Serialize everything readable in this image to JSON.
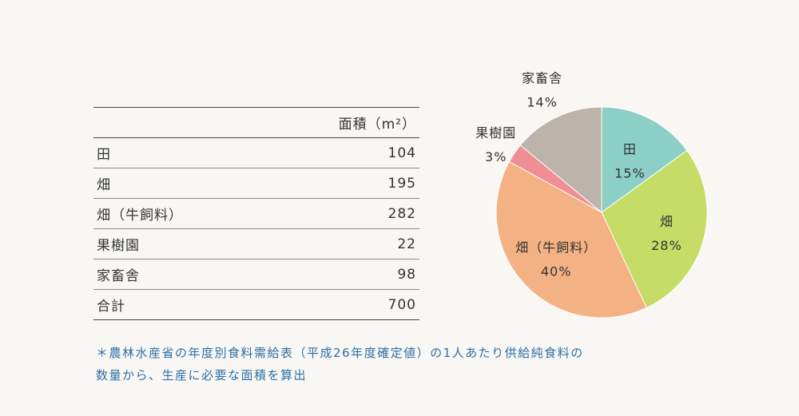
{
  "table": {
    "header_label": "",
    "header_value": "面積（m²）",
    "rows": [
      {
        "label": "田",
        "value": "104"
      },
      {
        "label": "畑",
        "value": "195"
      },
      {
        "label": "畑（牛飼料）",
        "value": "282"
      },
      {
        "label": "果樹園",
        "value": "22"
      },
      {
        "label": "家畜舎",
        "value": "98"
      }
    ],
    "total": {
      "label": "合計",
      "value": "700"
    }
  },
  "chart_data": {
    "type": "pie",
    "unit": "%",
    "slices": [
      {
        "label": "田",
        "value": 15,
        "color": "#8ccfc6"
      },
      {
        "label": "畑",
        "value": 28,
        "color": "#c5dc66"
      },
      {
        "label": "畑（牛飼料）",
        "value": 40,
        "color": "#f4b183"
      },
      {
        "label": "果樹園",
        "value": 3,
        "color": "#ef8f95"
      },
      {
        "label": "家畜舎",
        "value": 14,
        "color": "#bcb3ab"
      }
    ]
  },
  "footnote": {
    "line1": "＊農林水産省の年度別食料需給表（平成26年度確定値）の1人あたり供給純食料の",
    "line2": "数量から、生産に必要な面積を算出"
  }
}
